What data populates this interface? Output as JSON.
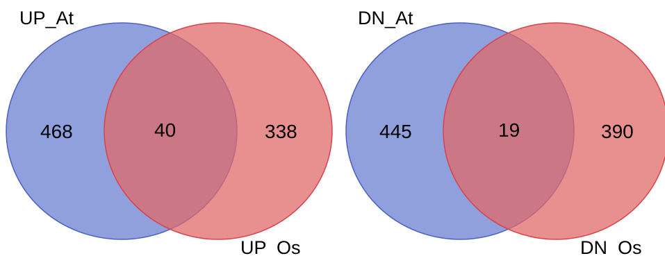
{
  "diagrams": [
    {
      "set_a": {
        "label": "UP_At",
        "only_count": "468"
      },
      "set_b": {
        "label": "UP  Os",
        "only_count": "338"
      },
      "overlap_count": "40"
    },
    {
      "set_a": {
        "label": "DN_At",
        "only_count": "445"
      },
      "set_b": {
        "label": "DN  Os",
        "only_count": "390"
      },
      "overlap_count": "19"
    }
  ],
  "colors": {
    "set_a_fill": "#7b8fd6",
    "set_a_stroke": "#4a5fc4",
    "set_b_fill": "#e06a6a",
    "set_b_stroke": "#d9424a",
    "overlap_fill": "#a9546f"
  }
}
